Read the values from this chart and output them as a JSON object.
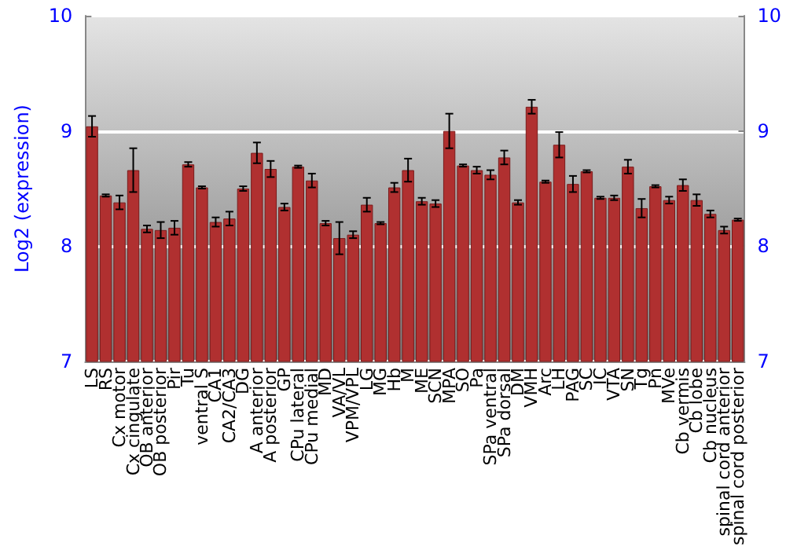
{
  "chart_data": {
    "type": "bar",
    "ylabel": "Log2 (expression)",
    "categories": [
      "LS",
      "RS",
      "Cx motor",
      "Cx cingulate",
      "OB anterior",
      "OB posterior",
      "Pir",
      "Tu",
      "ventral S",
      "CA1",
      "CA2/CA3",
      "DG",
      "A anterior",
      "A posterior",
      "GP",
      "CPu lateral",
      "CPu medial",
      "MD",
      "VA/VL",
      "VPM/VPL",
      "LG",
      "MG",
      "Hb",
      "M",
      "ME",
      "SCN",
      "MPA",
      "SO",
      "Pa",
      "SPa ventral",
      "SPa dorsal",
      "DM",
      "VMH",
      "Arc",
      "LH",
      "PAG",
      "SC",
      "IC",
      "VTA",
      "SN",
      "Tg",
      "Pn",
      "MVe",
      "Cb vermis",
      "Cb lobe",
      "Cb nucleus",
      "spinal cord anterior",
      "spinal cord posterior"
    ],
    "values": [
      9.04,
      8.44,
      8.38,
      8.66,
      8.15,
      8.14,
      8.16,
      8.71,
      8.51,
      8.21,
      8.24,
      8.5,
      8.81,
      8.67,
      8.34,
      8.69,
      8.57,
      8.2,
      8.07,
      8.1,
      8.36,
      8.2,
      8.51,
      8.66,
      8.39,
      8.37,
      9.0,
      8.7,
      8.66,
      8.62,
      8.77,
      8.38,
      9.21,
      8.56,
      8.88,
      8.54,
      8.65,
      8.42,
      8.42,
      8.69,
      8.33,
      8.52,
      8.4,
      8.53,
      8.4,
      8.28,
      8.14,
      8.23
    ],
    "errors": [
      0.09,
      0.01,
      0.06,
      0.19,
      0.03,
      0.07,
      0.06,
      0.02,
      0.01,
      0.04,
      0.06,
      0.02,
      0.09,
      0.07,
      0.03,
      0.01,
      0.06,
      0.02,
      0.14,
      0.03,
      0.06,
      0.01,
      0.04,
      0.1,
      0.03,
      0.03,
      0.15,
      0.01,
      0.03,
      0.04,
      0.06,
      0.02,
      0.06,
      0.01,
      0.11,
      0.07,
      0.01,
      0.01,
      0.02,
      0.06,
      0.08,
      0.01,
      0.03,
      0.05,
      0.05,
      0.03,
      0.03,
      0.01
    ],
    "color": "#b03030",
    "ylim": [
      7,
      10
    ],
    "yticks": [
      7,
      8,
      9,
      10
    ],
    "y2lim": [
      7,
      10
    ],
    "y2ticks": [
      7,
      8,
      9,
      10
    ],
    "grid": "y"
  }
}
